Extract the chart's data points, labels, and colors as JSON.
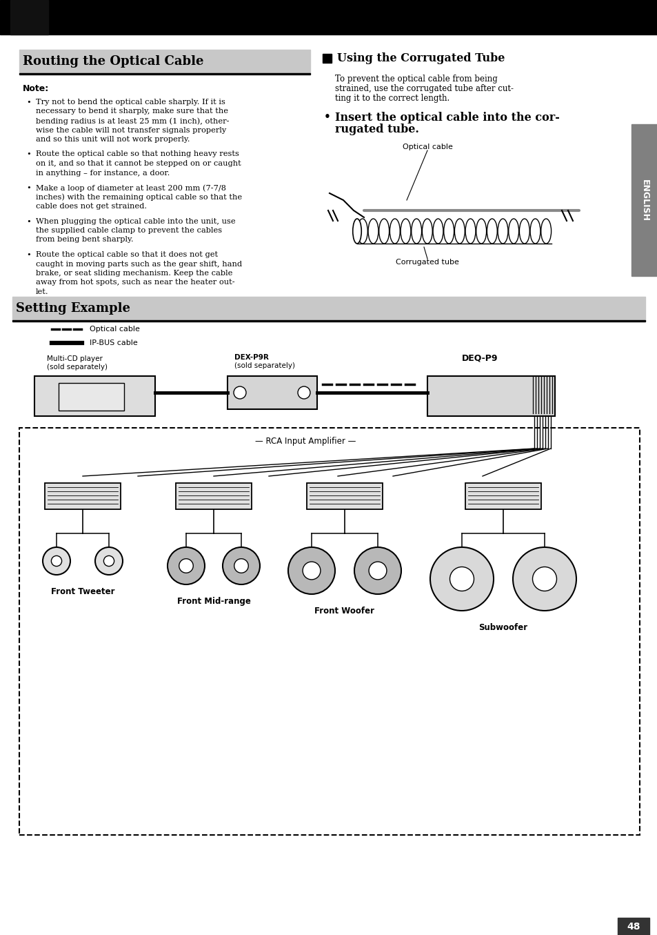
{
  "page_bg": "#ffffff",
  "header_bg": "#000000",
  "left_tab_color": "#222222",
  "english_tab_color": "#808080",
  "section1_title": "Routing the Optical Cable",
  "section2_title": "Using the Corrugated Tube",
  "note_title": "Note:",
  "bullet1_line1": "Try not to bend the optical cable sharply. If it is",
  "bullet1_line2": "necessary to bend it sharply, make sure that the",
  "bullet1_line3": "bending radius is at least 25 mm (1 inch), other-",
  "bullet1_line4": "wise the cable will not transfer signals properly",
  "bullet1_line5": "and so this unit will not work properly.",
  "bullet2_line1": "Route the optical cable so that nothing heavy rests",
  "bullet2_line2": "on it, and so that it cannot be stepped on or caught",
  "bullet2_line3": "in anything – for instance, a door.",
  "bullet3_line1": "Make a loop of diameter at least 200 mm (7-7/8",
  "bullet3_line2": "inches) with the remaining optical cable so that the",
  "bullet3_line3": "cable does not get strained.",
  "bullet4_line1": "When plugging the optical cable into the unit, use",
  "bullet4_line2": "the supplied cable clamp to prevent the cables",
  "bullet4_line3": "from being bent sharply.",
  "bullet5_line1": "Route the optical cable so that it does not get",
  "bullet5_line2": "caught in moving parts such as the gear shift, hand",
  "bullet5_line3": "brake, or seat sliding mechanism. Keep the cable",
  "bullet5_line4": "away from hot spots, such as near the heater out-",
  "bullet5_line5": "let.",
  "corrugated_line1": "To prevent the optical cable from being",
  "corrugated_line2": "strained, use the corrugated tube after cut-",
  "corrugated_line3": "ting it to the correct length.",
  "insert_line1": "Insert the optical cable into the cor-",
  "insert_line2": "rugated tube.",
  "optical_cable_label": "Optical cable",
  "corrugated_tube_label": "Corrugated tube",
  "setting_example_title": "Setting Example",
  "legend_optical": "Optical cable",
  "legend_ipbus": "IP-BUS cable",
  "multi_cd_label1": "Multi-CD player",
  "multi_cd_label2": "(sold separately)",
  "dex_label1": "DEX-P9R",
  "dex_label2": "(sold separately)",
  "deq_label": "DEQ-P9",
  "rca_label": "RCA Input Amplifier",
  "speaker_labels": [
    "Front Tweeter",
    "Front Mid-range",
    "Front Woofer",
    "Subwoofer"
  ],
  "page_number": "48",
  "english_text": "ENGLISH",
  "title_gray": "#c8c8c8",
  "title_line_color": "#000000"
}
